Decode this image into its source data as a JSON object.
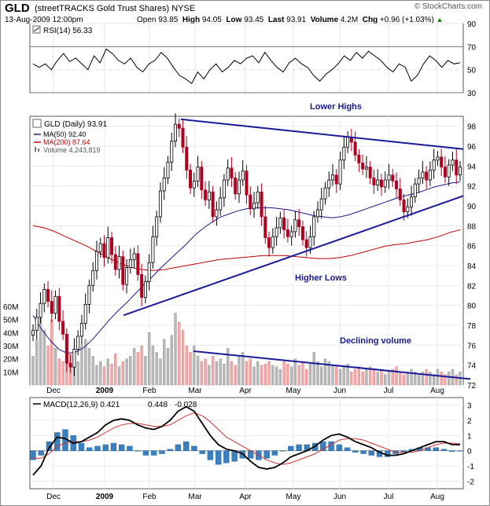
{
  "header": {
    "ticker": "GLD",
    "full_name": "(streetTRACKS Gold Trust Shares) NYSE",
    "datetime": "13-Aug-2009 12:00pm",
    "open_label": "Open",
    "open": "93.85",
    "high_label": "High",
    "high": "94.05",
    "low_label": "Low",
    "low": "93.45",
    "last_label": "Last",
    "last": "93.91",
    "volume_label": "Volume",
    "volume": "4.2M",
    "chg_label": "Chg",
    "chg": "+0.96 (+1.03%)",
    "chg_arrow": "▲",
    "logo": "© StockCharts.com"
  },
  "chart_data": [
    {
      "type": "line",
      "panel": "rsi",
      "legend": "RSI(14) 56.33",
      "series": [
        {
          "name": "RSI(14)",
          "color": "#000000",
          "values": [
            55,
            52,
            55,
            50,
            58,
            64,
            57,
            60,
            55,
            50,
            62,
            56,
            68,
            64,
            58,
            55,
            60,
            52,
            48,
            55,
            58,
            65,
            60,
            52,
            45,
            42,
            38,
            48,
            42,
            50,
            55,
            48,
            52,
            58,
            55,
            60,
            62,
            56,
            65,
            58,
            52,
            48,
            56,
            60,
            55,
            52,
            45,
            40,
            46,
            50,
            55,
            62,
            58,
            65,
            60,
            66,
            62,
            58,
            52,
            48,
            55,
            52,
            40,
            45,
            55,
            62,
            58,
            52,
            58,
            55,
            56
          ]
        }
      ],
      "ylim": [
        30,
        90
      ],
      "yticks": [
        30,
        50,
        70,
        90
      ],
      "ytick_labels": [
        "90",
        "70",
        "50",
        "30"
      ],
      "reference_lines": [
        70,
        50,
        30
      ]
    },
    {
      "type": "candlestick",
      "panel": "price",
      "legend": [
        "GLD (Daily) 93.91",
        "MA(50) 92.40",
        "MA(200) 87.64",
        "Volume 4,243,819"
      ],
      "colors": {
        "up": "#000000",
        "down": "#b00020",
        "ma50": "#1a1a8c",
        "ma200": "#c00000",
        "volume": "#b8b8b8",
        "volume_down": "#f0a8a8"
      },
      "x_labels": [
        "Dec",
        "2009",
        "Feb",
        "Mar",
        "Apr",
        "May",
        "Jun",
        "Jul",
        "Aug"
      ],
      "ylim": [
        72,
        99
      ],
      "y_tick_labels": [
        "98",
        "96",
        "94",
        "92",
        "90",
        "88",
        "86",
        "84",
        "82",
        "80",
        "78",
        "76",
        "74",
        "72"
      ],
      "close": [
        77.5,
        78.8,
        80.2,
        81.6,
        80.4,
        79.2,
        80.9,
        78.4,
        77.1,
        74.2,
        73.8,
        75.6,
        76.9,
        78.2,
        80.1,
        82.0,
        83.5,
        85.4,
        86.2,
        84.8,
        86.8,
        85.1,
        83.6,
        84.9,
        82.1,
        83.8,
        84.6,
        85.2,
        83.1,
        80.8,
        82.4,
        84.3,
        86.9,
        88.9,
        91.5,
        92.8,
        94.4,
        96.5,
        98.2,
        97.8,
        95.9,
        93.6,
        91.8,
        92.5,
        93.9,
        91.6,
        90.6,
        91.4,
        88.9,
        89.6,
        90.8,
        92.6,
        93.8,
        92.8,
        91.2,
        92.6,
        93.5,
        91.1,
        89.7,
        90.3,
        91.4,
        88.9,
        86.8,
        85.8,
        86.9,
        87.8,
        88.8,
        87.6,
        86.9,
        87.4,
        88.6,
        87.9,
        86.6,
        85.8,
        86.9,
        88.9,
        89.6,
        90.7,
        91.8,
        92.6,
        93.1,
        92.2,
        94.6,
        95.9,
        96.9,
        96.4,
        95.1,
        94.3,
        93.7,
        93.9,
        92.8,
        92.1,
        92.6,
        91.9,
        92.6,
        93.1,
        92.5,
        91.7,
        90.6,
        89.4,
        89.9,
        90.9,
        92.2,
        92.8,
        93.4,
        92.6,
        93.6,
        94.6,
        94.9,
        93.9,
        92.9,
        94.1,
        94.6,
        93.1,
        93.9
      ],
      "ma50": [
        79,
        77.6,
        76.5,
        75.6,
        75.2,
        75.3,
        75.8,
        76.6,
        77.6,
        78.6,
        79.5,
        80.3,
        81.2,
        82.1,
        82.9,
        83.8,
        84.6,
        85.4,
        86.2,
        87.1,
        87.8,
        88.4,
        88.9,
        89.2,
        89.5,
        89.7,
        89.8,
        89.8,
        89.8,
        89.7,
        89.6,
        89.4,
        89.2,
        89.0,
        88.9,
        88.8,
        88.9,
        89.1,
        89.4,
        89.7,
        90.0,
        90.3,
        90.6,
        90.9,
        91.1,
        91.3,
        91.6,
        91.9,
        92.1,
        92.3,
        92.4
      ],
      "ma200": [
        88,
        87.8,
        87.4,
        86.9,
        86.4,
        85.9,
        85.3,
        84.7,
        84.2,
        83.8,
        83.6,
        83.5,
        83.6,
        83.8,
        84.0,
        84.2,
        84.4,
        84.6,
        84.7,
        84.8,
        84.9,
        85.0,
        85.0,
        85.0,
        84.9,
        84.8,
        84.7,
        84.7,
        84.8,
        85.0,
        85.3,
        85.6,
        85.9,
        86.1,
        86.2,
        86.4,
        86.6,
        86.9,
        87.3,
        87.6
      ],
      "volume": [
        22,
        35,
        60,
        42,
        30,
        50,
        28,
        20,
        18,
        25,
        24,
        22,
        18,
        30,
        35,
        28,
        22,
        15,
        18,
        14,
        20,
        16,
        24,
        14,
        18,
        20,
        22,
        28,
        25,
        30,
        22,
        40,
        30,
        25,
        20,
        35,
        28,
        38,
        55,
        48,
        42,
        30,
        25,
        30,
        22,
        18,
        20,
        15,
        22,
        18,
        20,
        16,
        28,
        18,
        15,
        22,
        25,
        18,
        20,
        14,
        18,
        15,
        16,
        18,
        15,
        14,
        12,
        18,
        16,
        14,
        20,
        15,
        18,
        12,
        16,
        25,
        18,
        14,
        20,
        18,
        15,
        14,
        12,
        14,
        16,
        10,
        12,
        14,
        10,
        12,
        14,
        12,
        10,
        12,
        8,
        10,
        12,
        14,
        10,
        8,
        10,
        12,
        10,
        8,
        10,
        12,
        10,
        8,
        12,
        10,
        8,
        10,
        12,
        8,
        10
      ],
      "volume_axis_labels": [
        "60M",
        "50M",
        "40M",
        "30M",
        "20M",
        "10M"
      ],
      "volume_ylim": [
        0,
        66
      ],
      "annotations": [
        "Lower Highs",
        "Higher Lows",
        "Declining volume"
      ]
    },
    {
      "type": "line",
      "panel": "macd",
      "legend": {
        "name": "MACD(12,26,9)",
        "macd": "0.421",
        "signal": "0.448",
        "histogram": "-0.028"
      },
      "series": [
        {
          "name": "MACD(12,26,9)",
          "color": "#000000",
          "values": [
            -1.6,
            -1.0,
            0.2,
            0.9,
            0.8,
            0.5,
            0.6,
            0.9,
            1.2,
            1.7,
            2.0,
            2.1,
            2.0,
            1.7,
            1.5,
            1.4,
            1.6,
            2.0,
            2.6,
            2.9,
            2.6,
            1.8,
            1.0,
            0.4,
            0.1,
            0.0,
            -0.2,
            -0.7,
            -1.1,
            -1.2,
            -1.1,
            -0.8,
            -0.4,
            -0.2,
            0.0,
            0.3,
            0.7,
            1.0,
            1.1,
            0.9,
            0.6,
            0.4,
            0.2,
            -0.1,
            -0.3,
            -0.3,
            -0.2,
            0.0,
            0.2,
            0.4,
            0.6,
            0.6,
            0.4,
            0.4
          ]
        },
        {
          "name": "signal",
          "color": "#d03030",
          "values": [
            -0.5,
            -0.5,
            -0.2,
            0.3,
            0.5,
            0.6,
            0.6,
            0.7,
            0.9,
            1.2,
            1.5,
            1.7,
            1.8,
            1.8,
            1.7,
            1.6,
            1.6,
            1.7,
            2.0,
            2.3,
            2.5,
            2.3,
            1.9,
            1.4,
            0.9,
            0.6,
            0.3,
            0.0,
            -0.3,
            -0.6,
            -0.8,
            -0.9,
            -0.8,
            -0.6,
            -0.4,
            -0.2,
            0.1,
            0.4,
            0.7,
            0.8,
            0.8,
            0.7,
            0.5,
            0.3,
            0.1,
            -0.1,
            -0.1,
            -0.1,
            0.0,
            0.2,
            0.4,
            0.5,
            0.5,
            0.45
          ]
        },
        {
          "name": "histogram",
          "color": "#3a80c0",
          "values": [
            -0.6,
            -0.3,
            0.6,
            1.2,
            1.4,
            1.0,
            0.5,
            0.2,
            0.3,
            0.4,
            0.5,
            0.4,
            0.3,
            0.0,
            -0.3,
            -0.3,
            -0.2,
            0.1,
            0.4,
            0.6,
            0.3,
            -0.2,
            -0.6,
            -0.9,
            -0.8,
            -0.7,
            -0.5,
            -0.5,
            -0.6,
            -0.5,
            -0.3,
            0.0,
            0.3,
            0.4,
            0.4,
            0.5,
            0.6,
            0.6,
            0.4,
            0.2,
            -0.1,
            -0.2,
            -0.3,
            -0.4,
            -0.4,
            -0.2,
            -0.1,
            0.1,
            0.2,
            0.2,
            0.2,
            0.1,
            -0.05,
            -0.03
          ]
        }
      ],
      "ylim": [
        -2.5,
        3.5
      ],
      "y_tick_labels": [
        "3",
        "2",
        "1",
        "0",
        "-1",
        "-2"
      ],
      "x_labels": [
        "Dec",
        "2009",
        "Feb",
        "Mar",
        "Apr",
        "May",
        "Jun",
        "Jul",
        "Aug"
      ]
    }
  ]
}
